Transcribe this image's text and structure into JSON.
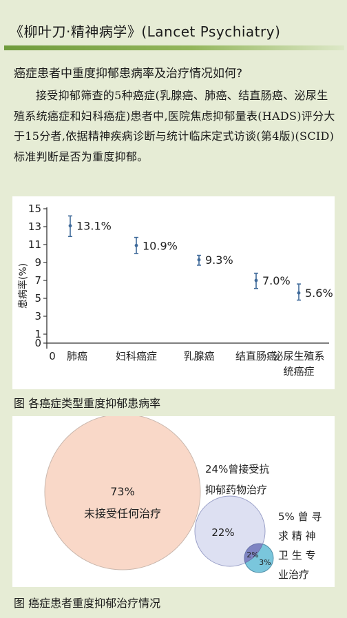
{
  "article": {
    "title": "《柳叶刀·精神病学》(Lancet Psychiatry)",
    "question": "癌症患者中重度抑郁患病率及治疗情况如何?",
    "paragraph": "接受抑郁筛查的5种癌症(乳腺癌、肺癌、结直肠癌、泌尿生殖系统癌症和妇科癌症)患者中,医院焦虑抑郁量表(HADS)评分大于15分者,依据精神疾病诊断与统计临床定式访谈(第4版)(SCID)标准判断是否为重度抑郁。"
  },
  "chart_data": [
    {
      "type": "scatter",
      "title": "",
      "caption": "图 各癌症类型重度抑郁患病率",
      "ylabel": "患病率(%)",
      "xlabel": "",
      "ylim": [
        0,
        15
      ],
      "yticks": [
        0,
        1,
        3,
        5,
        7,
        9,
        11,
        13,
        15
      ],
      "x_origin_label": "0",
      "categories": [
        "肺癌",
        "妇科癌症",
        "乳腺癌",
        "结直肠癌",
        "泌尿生殖系统癌症"
      ],
      "category_lines": [
        [
          "肺癌"
        ],
        [
          "妇科癌症"
        ],
        [
          "乳腺癌"
        ],
        [
          "结直肠癌"
        ],
        [
          "泌尿生殖系",
          "统癌症"
        ]
      ],
      "values": [
        13.1,
        10.9,
        9.3,
        7.0,
        5.6
      ],
      "error_low": [
        11.9,
        10.0,
        8.7,
        6.1,
        4.8
      ],
      "error_high": [
        14.2,
        11.8,
        9.8,
        7.8,
        6.6
      ],
      "data_labels": [
        "13.1%",
        "10.9%",
        "9.3%",
        "7.0%",
        "5.6%"
      ],
      "point_color": "#3f6a9a"
    },
    {
      "type": "venn",
      "caption": "图 癌症患者重度抑郁治疗情况",
      "sets": [
        {
          "value": 73,
          "label": "73%",
          "text": "未接受任何治疗",
          "color": "#f9d8c8"
        },
        {
          "value": 22,
          "label": "22%",
          "text_lines": [
            "24%曾接受抗",
            "抑郁药物治疗"
          ],
          "color": "#dde0f2"
        },
        {
          "value": 3,
          "label": "3%",
          "text_lines": [
            "5% 曾 寻",
            "求 精 神",
            "卫 生 专",
            "业治疗"
          ],
          "color": "#7ac6dc"
        }
      ],
      "overlap": {
        "value": 2,
        "label": "2%",
        "color": "#7e84c2"
      }
    }
  ]
}
